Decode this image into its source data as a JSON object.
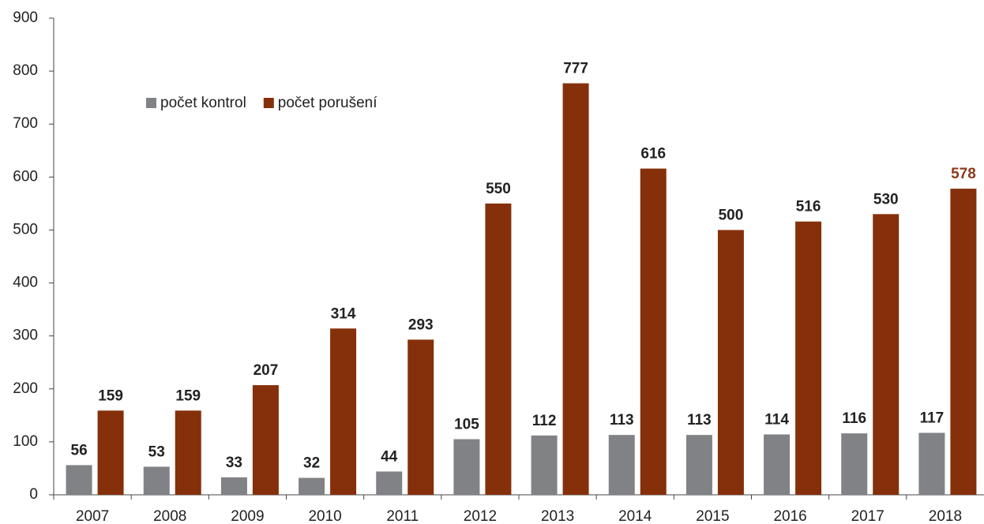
{
  "chart_data": {
    "type": "bar",
    "categories": [
      "2007",
      "2008",
      "2009",
      "2010",
      "2011",
      "2012",
      "2013",
      "2014",
      "2015",
      "2016",
      "2017",
      "2018"
    ],
    "series": [
      {
        "name": "počet kontrol",
        "color": "#808285",
        "values": [
          56,
          53,
          33,
          32,
          44,
          105,
          112,
          113,
          113,
          114,
          116,
          117
        ]
      },
      {
        "name": "počet porušení",
        "color": "#85300a",
        "values": [
          159,
          159,
          207,
          314,
          293,
          550,
          777,
          616,
          500,
          516,
          530,
          578
        ],
        "label_colors": [
          "#222",
          "#222",
          "#222",
          "#222",
          "#222",
          "#222",
          "#222",
          "#222",
          "#222",
          "#222",
          "#222",
          "#8b3a1a"
        ]
      }
    ],
    "ylim": [
      0,
      900
    ],
    "yticks": [
      0,
      100,
      200,
      300,
      400,
      500,
      600,
      700,
      800,
      900
    ],
    "grid": false,
    "legend": "top-left"
  }
}
